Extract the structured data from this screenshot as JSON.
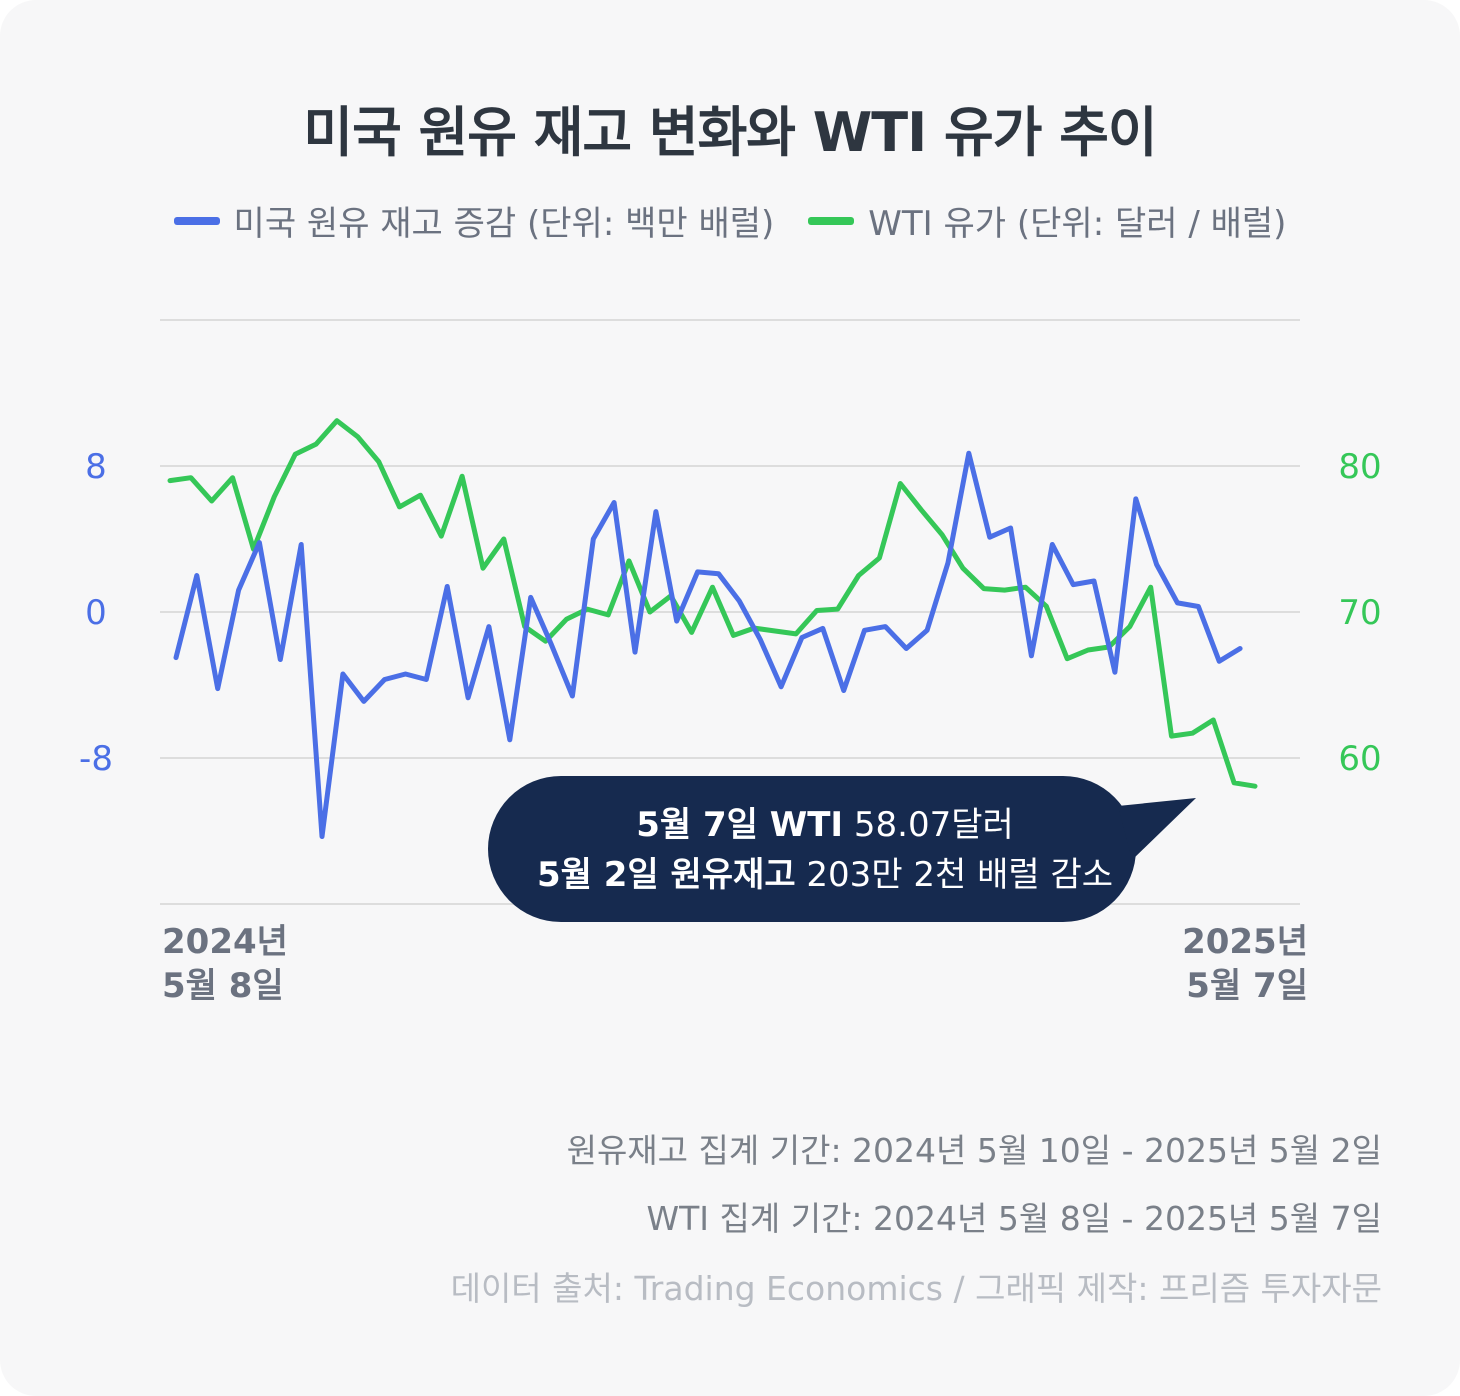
{
  "title": "미국 원유 재고 변화와 WTI 유가 추이",
  "legend": {
    "inventory": "미국 원유 재고 증감 (단위: 백만 배럴)",
    "wti": "WTI 유가 (단위: 달러 / 배럴)"
  },
  "colors": {
    "inventory": "#4b6fe6",
    "wti": "#35c758",
    "callout_bg": "#162a4f",
    "grid": "#dddddd"
  },
  "callout": {
    "line1_bold": "5월 7일 WTI",
    "line1_rest": " 58.07달러",
    "line2_bold": "5월 2일 원유재고",
    "line2_rest": " 203만 2천 배럴 감소"
  },
  "x_start": {
    "line1": "2024년",
    "line2": "5월 8일"
  },
  "x_end": {
    "line1": "2025년",
    "line2": "5월 7일"
  },
  "footer": {
    "inventory_period": "원유재고 집계 기간: 2024년 5월 10일 - 2025년 5월 2일",
    "wti_period": "WTI 집계 기간: 2024년 5월 8일 - 2025년 5월 7일",
    "source": "데이터 출처: Trading Economics / 그래픽 제작: 프리즘 투자자문"
  },
  "chart_data": {
    "type": "line",
    "title": "미국 원유 재고 변화와 WTI 유가 추이",
    "x_range": [
      "2024-05-08",
      "2025-05-07"
    ],
    "y_left": {
      "label": "미국 원유 재고 증감 (단위: 백만 배럴)",
      "ticks": [
        8,
        0,
        -8
      ],
      "range": [
        -16,
        16
      ]
    },
    "y_right": {
      "label": "WTI 유가 (단위: 달러 / 배럴)",
      "ticks": [
        80,
        70,
        60
      ],
      "range": [
        50,
        90
      ]
    },
    "grid": true,
    "legend_position": "top",
    "series": [
      {
        "name": "미국 원유 재고 증감 (단위: 백만 배럴)",
        "axis": "left",
        "x": [
          "2024-05-10",
          "2024-05-17",
          "2024-05-24",
          "2024-05-31",
          "2024-06-07",
          "2024-06-14",
          "2024-06-21",
          "2024-06-28",
          "2024-07-05",
          "2024-07-12",
          "2024-07-19",
          "2024-07-26",
          "2024-08-02",
          "2024-08-09",
          "2024-08-16",
          "2024-08-23",
          "2024-08-30",
          "2024-09-06",
          "2024-09-13",
          "2024-09-20",
          "2024-09-27",
          "2024-10-04",
          "2024-10-11",
          "2024-10-18",
          "2024-10-25",
          "2024-11-01",
          "2024-11-08",
          "2024-11-15",
          "2024-11-22",
          "2024-11-29",
          "2024-12-06",
          "2024-12-13",
          "2024-12-20",
          "2024-12-27",
          "2025-01-03",
          "2025-01-10",
          "2025-01-17",
          "2025-01-24",
          "2025-01-31",
          "2025-02-07",
          "2025-02-14",
          "2025-02-21",
          "2025-02-28",
          "2025-03-07",
          "2025-03-14",
          "2025-03-21",
          "2025-03-28",
          "2025-04-04",
          "2025-04-11",
          "2025-04-18",
          "2025-04-25",
          "2025-05-02"
        ],
        "y": [
          -2.5,
          2.0,
          -4.2,
          1.2,
          3.8,
          -2.6,
          3.7,
          -12.3,
          -3.4,
          -4.9,
          -3.7,
          -3.4,
          -3.7,
          1.4,
          -4.7,
          -0.8,
          -7.0,
          0.8,
          -1.8,
          -4.6,
          4.0,
          6.0,
          -2.2,
          5.5,
          -0.5,
          2.2,
          2.1,
          0.6,
          -1.5,
          -4.1,
          -1.4,
          -0.9,
          -4.3,
          -1.0,
          -0.8,
          -2.0,
          -1.0,
          2.7,
          8.7,
          4.1,
          4.6,
          -2.4,
          3.7,
          1.5,
          1.7,
          -3.3,
          6.2,
          2.6,
          0.5,
          0.3,
          -2.7,
          -2.0
        ]
      },
      {
        "name": "WTI 유가 (단위: 달러 / 배럴)",
        "axis": "right",
        "x": [
          "2024-05-08",
          "2024-05-15",
          "2024-05-22",
          "2024-05-29",
          "2024-06-05",
          "2024-06-12",
          "2024-06-19",
          "2024-06-26",
          "2024-07-03",
          "2024-07-10",
          "2024-07-17",
          "2024-07-24",
          "2024-07-31",
          "2024-08-07",
          "2024-08-14",
          "2024-08-21",
          "2024-08-28",
          "2024-09-04",
          "2024-09-11",
          "2024-09-18",
          "2024-09-25",
          "2024-10-02",
          "2024-10-09",
          "2024-10-16",
          "2024-10-23",
          "2024-10-30",
          "2024-11-06",
          "2024-11-13",
          "2024-11-20",
          "2024-11-27",
          "2024-12-04",
          "2024-12-11",
          "2024-12-18",
          "2024-12-25",
          "2025-01-01",
          "2025-01-08",
          "2025-01-15",
          "2025-01-22",
          "2025-01-29",
          "2025-02-05",
          "2025-02-12",
          "2025-02-19",
          "2025-02-26",
          "2025-03-05",
          "2025-03-12",
          "2025-03-19",
          "2025-03-26",
          "2025-04-02",
          "2025-04-09",
          "2025-04-16",
          "2025-04-23",
          "2025-04-30",
          "2025-05-07"
        ],
        "y": [
          79.0,
          79.2,
          77.6,
          79.2,
          74.3,
          77.9,
          80.8,
          81.5,
          83.1,
          82.0,
          80.3,
          77.2,
          78.0,
          75.2,
          79.3,
          73.0,
          75.0,
          69.0,
          68.0,
          69.5,
          70.2,
          69.8,
          73.5,
          70.0,
          71.1,
          68.6,
          71.7,
          68.4,
          68.9,
          68.7,
          68.5,
          70.1,
          70.2,
          72.5,
          73.7,
          78.8,
          77.0,
          75.3,
          73.0,
          71.6,
          71.5,
          71.7,
          70.4,
          66.8,
          67.4,
          67.6,
          69.0,
          71.7,
          61.5,
          61.7,
          62.6,
          58.3,
          58.07
        ]
      }
    ]
  }
}
